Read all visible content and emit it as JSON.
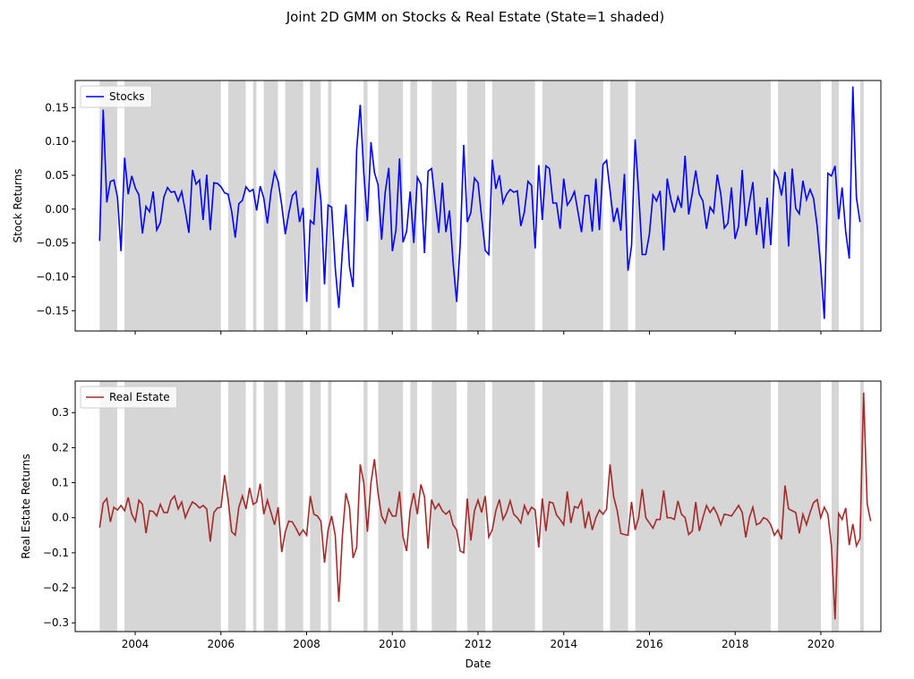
{
  "title": "Joint 2D GMM on Stocks & Real Estate (State=1 shaded)",
  "x_axis": {
    "label": "Date",
    "ticks": [
      "2004",
      "2006",
      "2008",
      "2010",
      "2012",
      "2014",
      "2016",
      "2018",
      "2020"
    ]
  },
  "colors": {
    "stocks": "#0000ff",
    "real_estate": "#a52a2a",
    "shade": "#d6d6d6",
    "axes": "#000000"
  },
  "chart_data": [
    {
      "type": "line",
      "x_unit": "year",
      "ylabel": "Stock Returns",
      "ylim": [
        -0.18,
        0.19
      ],
      "yticks": [
        "0.15",
        "0.10",
        "0.05",
        "0.00",
        "−0.05",
        "−0.10",
        "−0.15"
      ],
      "ytick_values": [
        0.15,
        0.1,
        0.05,
        0.0,
        -0.05,
        -0.1,
        -0.15
      ],
      "legend": "upper-left",
      "grid": false,
      "series": [
        {
          "name": "Stocks",
          "x_start": 2003.17,
          "x_step": 0.0833,
          "values": [
            -0.047,
            0.147,
            0.01,
            0.041,
            0.043,
            0.018,
            -0.062,
            0.076,
            0.022,
            0.049,
            0.031,
            0.021,
            -0.036,
            0.004,
            -0.004,
            0.026,
            -0.031,
            -0.02,
            0.018,
            0.032,
            0.025,
            0.026,
            0.012,
            0.026,
            -0.003,
            -0.035,
            0.058,
            0.037,
            0.043,
            -0.016,
            0.051,
            -0.031,
            0.039,
            0.038,
            0.033,
            0.024,
            0.022,
            -0.003,
            -0.042,
            0.008,
            0.013,
            0.033,
            0.026,
            0.029,
            -0.002,
            0.034,
            0.016,
            -0.021,
            0.025,
            0.055,
            0.041,
            0.006,
            -0.037,
            -0.006,
            0.02,
            0.026,
            -0.019,
            0.002,
            -0.137,
            -0.017,
            -0.022,
            0.061,
            0.013,
            -0.111,
            0.006,
            0.003,
            -0.087,
            -0.146,
            -0.061,
            0.007,
            -0.085,
            -0.115,
            0.087,
            0.154,
            0.053,
            -0.018,
            0.099,
            0.054,
            0.036,
            -0.045,
            0.025,
            0.061,
            -0.062,
            -0.031,
            0.075,
            -0.049,
            -0.033,
            0.026,
            -0.05,
            0.047,
            0.037,
            -0.065,
            0.056,
            0.06,
            0.012,
            -0.035,
            0.039,
            -0.034,
            -0.002,
            -0.078,
            -0.137,
            -0.051,
            0.095,
            -0.019,
            -0.005,
            0.046,
            0.039,
            -0.012,
            -0.061,
            -0.067,
            0.073,
            0.03,
            0.05,
            0.009,
            0.022,
            0.029,
            0.025,
            0.027,
            -0.025,
            -0.004,
            0.041,
            0.035,
            -0.058,
            0.065,
            -0.016,
            0.064,
            0.06,
            0.009,
            0.009,
            -0.029,
            0.045,
            0.006,
            0.014,
            0.026,
            -0.004,
            -0.034,
            0.02,
            0.02,
            -0.033,
            0.045,
            -0.031,
            0.066,
            0.072,
            0.027,
            -0.019,
            0.002,
            -0.032,
            0.052,
            -0.091,
            -0.054,
            0.103,
            0.025,
            -0.067,
            -0.067,
            -0.037,
            0.021,
            0.012,
            0.027,
            -0.061,
            0.045,
            0.015,
            -0.005,
            0.018,
            0.002,
            0.079,
            -0.008,
            0.023,
            0.057,
            0.022,
            0.012,
            -0.029,
            0.003,
            -0.005,
            0.051,
            0.022,
            -0.028,
            -0.021,
            0.032,
            -0.044,
            -0.025,
            0.058,
            -0.025,
            0.009,
            0.04,
            -0.038,
            0.003,
            -0.058,
            0.017,
            -0.053,
            0.056,
            0.046,
            0.02,
            0.055,
            -0.055,
            0.06,
            0.001,
            -0.007,
            0.042,
            0.014,
            0.029,
            0.016,
            -0.025,
            -0.084,
            -0.162,
            0.053,
            0.049,
            0.064,
            -0.015,
            0.032,
            -0.033,
            -0.073,
            0.181,
            0.017,
            -0.019
          ]
        }
      ]
    },
    {
      "type": "line",
      "x_unit": "year",
      "ylabel": "Real Estate Returns",
      "ylim": [
        -0.325,
        0.39
      ],
      "yticks": [
        "0.3",
        "0.2",
        "0.1",
        "0.0",
        "−0.1",
        "−0.2",
        "−0.3"
      ],
      "ytick_values": [
        0.3,
        0.2,
        0.1,
        0.0,
        -0.1,
        -0.2,
        -0.3
      ],
      "legend": "upper-left",
      "grid": false,
      "series": [
        {
          "name": "Real Estate",
          "x_start": 2003.17,
          "x_step": 0.0833,
          "values": [
            -0.028,
            0.042,
            0.055,
            -0.012,
            0.03,
            0.022,
            0.035,
            0.02,
            0.058,
            0.01,
            -0.01,
            0.05,
            0.038,
            -0.044,
            0.02,
            0.018,
            0.005,
            0.038,
            0.015,
            0.015,
            0.05,
            0.062,
            0.025,
            0.045,
            0.0,
            0.025,
            0.045,
            0.038,
            0.028,
            0.035,
            0.025,
            -0.068,
            0.015,
            0.028,
            0.03,
            0.122,
            0.052,
            -0.04,
            -0.05,
            0.03,
            0.062,
            0.025,
            0.085,
            0.038,
            0.045,
            0.097,
            0.01,
            0.05,
            0.015,
            -0.02,
            0.03,
            -0.098,
            -0.04,
            -0.01,
            -0.012,
            -0.03,
            -0.05,
            -0.035,
            -0.05,
            0.062,
            0.01,
            0.005,
            -0.01,
            -0.128,
            -0.035,
            0.005,
            -0.05,
            -0.24,
            -0.05,
            0.07,
            0.03,
            -0.115,
            -0.085,
            0.152,
            0.1,
            -0.04,
            0.1,
            0.167,
            0.07,
            0.005,
            -0.015,
            0.025,
            0.005,
            0.005,
            0.075,
            -0.055,
            -0.095,
            0.022,
            0.07,
            0.01,
            0.095,
            0.06,
            -0.088,
            0.052,
            0.025,
            0.04,
            0.02,
            0.01,
            0.02,
            -0.02,
            -0.035,
            -0.095,
            -0.1,
            0.055,
            -0.065,
            0.02,
            0.05,
            0.015,
            0.062,
            -0.055,
            -0.035,
            0.02,
            0.052,
            -0.005,
            0.015,
            0.048,
            0.01,
            0.0,
            -0.015,
            0.035,
            0.01,
            0.03,
            0.022,
            -0.085,
            0.055,
            -0.038,
            0.045,
            0.042,
            0.008,
            -0.005,
            -0.02,
            0.075,
            -0.015,
            0.032,
            0.028,
            0.05,
            -0.03,
            0.018,
            -0.035,
            0.0,
            0.022,
            0.01,
            0.025,
            0.152,
            0.06,
            0.02,
            -0.045,
            -0.048,
            -0.05,
            0.045,
            -0.035,
            0.0,
            0.082,
            0.0,
            -0.015,
            -0.03,
            -0.005,
            -0.005,
            0.078,
            0.0,
            0.0,
            -0.005,
            0.048,
            0.01,
            0.0,
            -0.048,
            -0.038,
            0.045,
            -0.038,
            0.0,
            0.035,
            0.015,
            0.03,
            0.01,
            -0.02,
            0.01,
            0.008,
            0.005,
            0.02,
            0.035,
            0.015,
            -0.056,
            0.0,
            0.03,
            -0.02,
            -0.015,
            0.0,
            -0.005,
            -0.02,
            -0.05,
            -0.035,
            -0.062,
            0.092,
            0.025,
            0.02,
            0.015,
            -0.045,
            0.01,
            -0.02,
            0.015,
            0.043,
            0.052,
            0.0,
            0.03,
            0.01,
            -0.08,
            -0.29,
            0.012,
            -0.005,
            0.028,
            -0.078,
            -0.018,
            -0.08,
            -0.06,
            0.357,
            0.04,
            -0.01
          ]
        }
      ]
    }
  ],
  "state1_periods": [
    [
      2003.17,
      2003.58
    ],
    [
      2003.75,
      2006.0
    ],
    [
      2006.17,
      2006.58
    ],
    [
      2006.75,
      2006.83
    ],
    [
      2007.0,
      2007.33
    ],
    [
      2007.5,
      2007.92
    ],
    [
      2008.08,
      2008.33
    ],
    [
      2008.5,
      2008.58
    ],
    [
      2009.33,
      2009.42
    ],
    [
      2009.67,
      2010.25
    ],
    [
      2010.42,
      2010.58
    ],
    [
      2010.92,
      2011.5
    ],
    [
      2011.75,
      2012.17
    ],
    [
      2012.33,
      2013.33
    ],
    [
      2013.5,
      2014.92
    ],
    [
      2015.08,
      2015.5
    ],
    [
      2015.67,
      2018.83
    ],
    [
      2019.0,
      2020.0
    ],
    [
      2020.25,
      2020.42
    ],
    [
      2020.92,
      2021.0
    ]
  ]
}
